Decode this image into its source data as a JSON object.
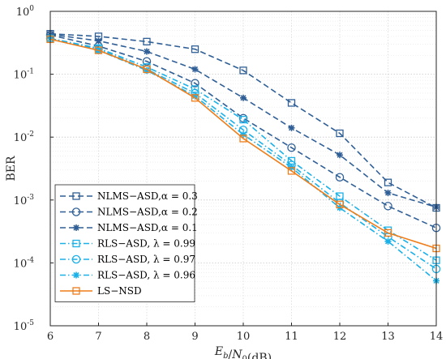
{
  "chart_data": {
    "type": "line",
    "xlabel": "E_b/N_0(dB)",
    "ylabel": "BER",
    "x_ticks": [
      6,
      7,
      8,
      9,
      10,
      11,
      12,
      13,
      14
    ],
    "y_tick_labels": [
      "10^-5",
      "10^-4",
      "10^-3",
      "10^-2",
      "10^-1",
      "10^0"
    ],
    "xlim": [
      6,
      14
    ],
    "ylim": [
      1e-05,
      1
    ],
    "y_scale": "log",
    "grid": true,
    "legend_position": "bottom-left",
    "x": [
      6,
      7,
      8,
      9,
      10,
      11,
      12,
      13,
      14
    ],
    "series": [
      {
        "name": "NLMS−ASD,α = 0.3",
        "color": "#2f5f96",
        "style": "dashed",
        "marker": "square",
        "values": [
          0.44,
          0.4,
          0.33,
          0.25,
          0.115,
          0.035,
          0.0115,
          0.0019,
          0.00075
        ]
      },
      {
        "name": "NLMS−ASD,α = 0.2",
        "color": "#2f5f96",
        "style": "dashed",
        "marker": "circle",
        "values": [
          0.42,
          0.28,
          0.16,
          0.072,
          0.02,
          0.0068,
          0.0023,
          0.0008,
          0.00036
        ]
      },
      {
        "name": "NLMS−ASD,α = 0.1",
        "color": "#2f5f96",
        "style": "dashed",
        "marker": "star",
        "values": [
          0.43,
          0.34,
          0.23,
          0.12,
          0.042,
          0.014,
          0.0052,
          0.0013,
          0.00077
        ]
      },
      {
        "name": "RLS−ASD, λ = 0.99",
        "color": "#1ab0e8",
        "style": "dashdot",
        "marker": "square",
        "values": [
          0.37,
          0.26,
          0.13,
          0.058,
          0.019,
          0.0042,
          0.00115,
          0.00033,
          0.00011
        ]
      },
      {
        "name": "RLS−ASD, λ = 0.97",
        "color": "#1ab0e8",
        "style": "dashdot",
        "marker": "circle",
        "values": [
          0.37,
          0.25,
          0.12,
          0.05,
          0.013,
          0.0036,
          0.0009,
          0.00026,
          8e-05
        ]
      },
      {
        "name": "RLS−ASD, λ = 0.96",
        "color": "#1ab0e8",
        "style": "dashdot",
        "marker": "star",
        "values": [
          0.37,
          0.24,
          0.115,
          0.045,
          0.011,
          0.0033,
          0.00075,
          0.00022,
          5.2e-05
        ]
      },
      {
        "name": "LS−NSD",
        "color": "#ef7d1a",
        "style": "solid",
        "marker": "square",
        "values": [
          0.36,
          0.24,
          0.12,
          0.042,
          0.0095,
          0.0029,
          0.00085,
          0.0003,
          0.00017
        ]
      }
    ]
  }
}
